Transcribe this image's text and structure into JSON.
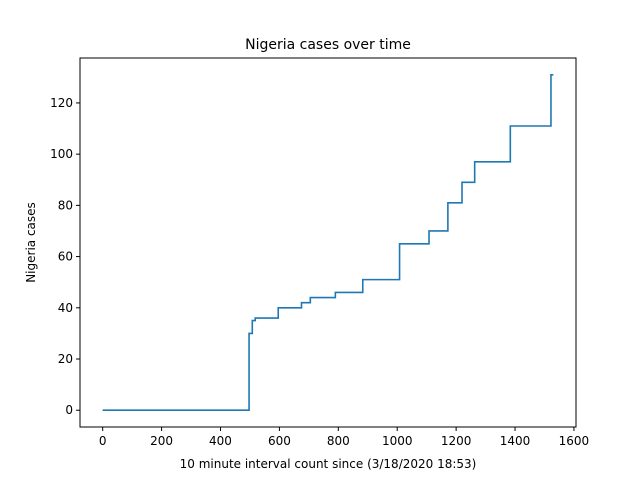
{
  "chart_data": {
    "type": "line",
    "title": "Nigeria cases over time",
    "xlabel": "10 minute interval count since (3/18/2020 18:53)",
    "ylabel": "Nigeria cases",
    "xlim": [
      -77,
      1607
    ],
    "ylim": [
      -6.55,
      137.55
    ],
    "xticks": [
      0,
      200,
      400,
      600,
      800,
      1000,
      1200,
      1400,
      1600
    ],
    "yticks": [
      0,
      20,
      40,
      60,
      80,
      100,
      120
    ],
    "grid": false,
    "step": "post",
    "color": "#1f77b4",
    "series": [
      {
        "x": [
          0,
          497,
          508,
          518,
          596,
          675,
          705,
          790,
          883,
          1008,
          1108,
          1172,
          1220,
          1263,
          1384,
          1522,
          1530
        ],
        "y": [
          0,
          30,
          35,
          36,
          40,
          42,
          44,
          46,
          51,
          65,
          70,
          81,
          89,
          97,
          111,
          131,
          131
        ]
      }
    ]
  }
}
